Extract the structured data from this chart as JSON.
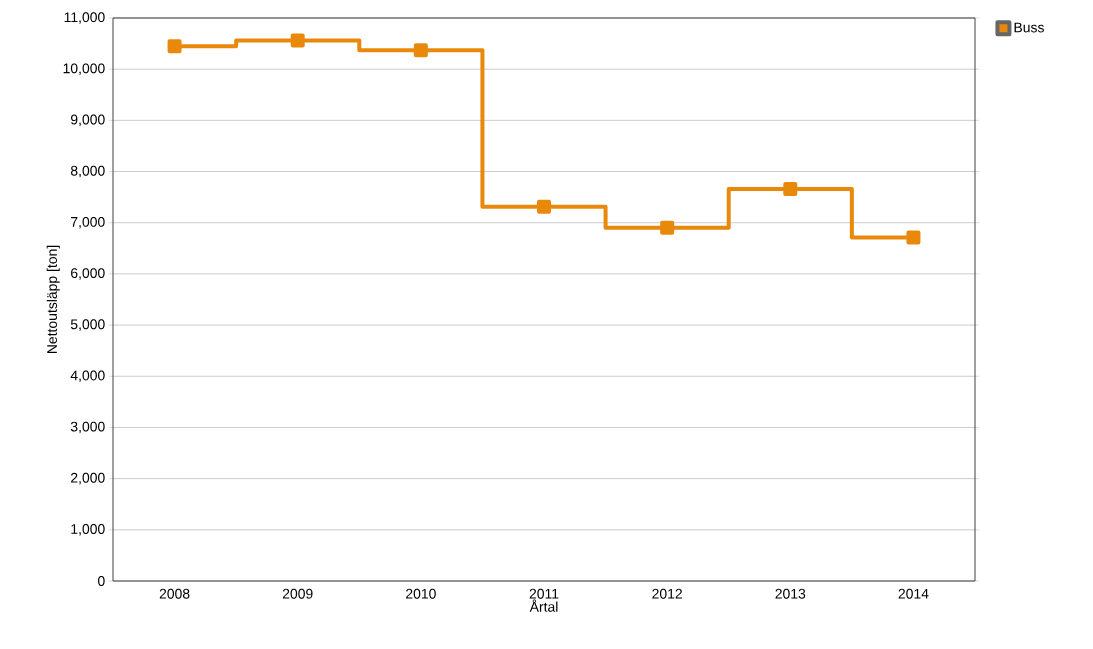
{
  "chart_data": {
    "type": "step",
    "xlabel": "Årtal",
    "ylabel": "Nettoutsläpp [ton]",
    "categories": [
      "2008",
      "2009",
      "2010",
      "2011",
      "2012",
      "2013",
      "2014"
    ],
    "series": [
      {
        "name": "Buss",
        "color": "#e8890c",
        "values": [
          10450,
          10560,
          10370,
          7310,
          6900,
          7660,
          6710
        ]
      }
    ],
    "ylim": [
      0,
      11000
    ],
    "yticks": [
      {
        "value": 0,
        "label": "0"
      },
      {
        "value": 1000,
        "label": "1,000"
      },
      {
        "value": 2000,
        "label": "2,000"
      },
      {
        "value": 3000,
        "label": "3,000"
      },
      {
        "value": 4000,
        "label": "4,000"
      },
      {
        "value": 5000,
        "label": "5,000"
      },
      {
        "value": 6000,
        "label": "6,000"
      },
      {
        "value": 7000,
        "label": "7,000"
      },
      {
        "value": 8000,
        "label": "8,000"
      },
      {
        "value": 9000,
        "label": "9,000"
      },
      {
        "value": 10000,
        "label": "10,000"
      },
      {
        "value": 11000,
        "label": "11,000"
      }
    ],
    "grid": "y",
    "legend": "top right",
    "marker": "square",
    "line_style": "solid"
  }
}
